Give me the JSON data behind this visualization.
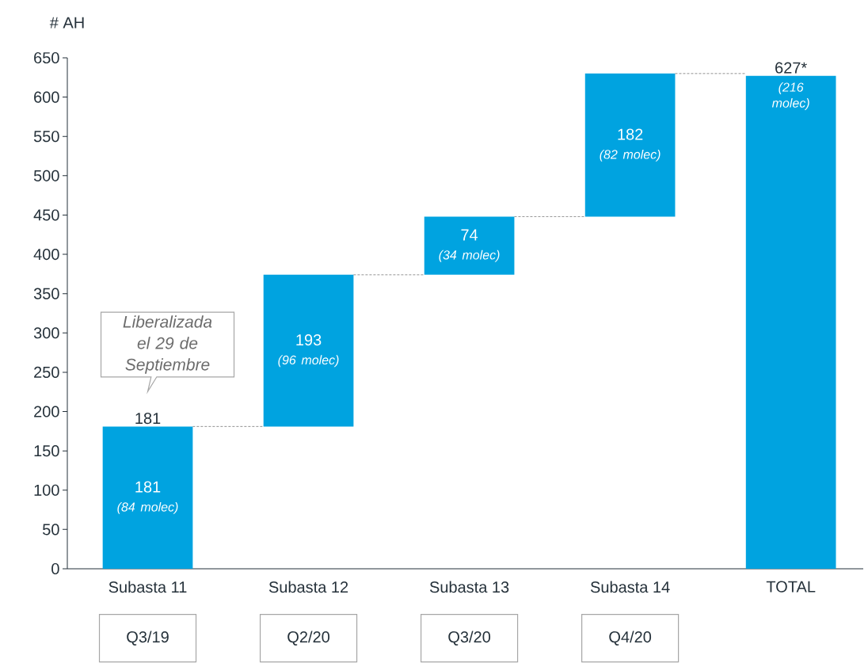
{
  "chart_data": {
    "type": "bar",
    "ylabel": "# AH",
    "categories": [
      "Subasta 11",
      "Subasta 12",
      "Subasta 13",
      "Subasta 14",
      "TOTAL"
    ],
    "values": [
      181,
      193,
      74,
      182,
      627
    ],
    "base": [
      0,
      181,
      374,
      448,
      0
    ],
    "color": "#00a3e0",
    "value_labels": [
      "181 *(84 molec)*",
      "193 *(96 molec)*",
      "74 *(34 molec)*",
      "182 *(82 molec)*",
      "627*"
    ],
    "ylim": [
      0,
      650
    ],
    "yticks": [
      0,
      50,
      100,
      150,
      200,
      250,
      300,
      350,
      400,
      450,
      500,
      550,
      600,
      650
    ],
    "annotations": [
      "*Liberalizada el 29 de Septiembre*",
      "*(216 molec)*",
      {
        "text": "181",
        "x": "Subasta 11",
        "y": 181
      },
      "Q3/19",
      "Q2/20",
      "Q3/20",
      "Q4/20"
    ]
  }
}
